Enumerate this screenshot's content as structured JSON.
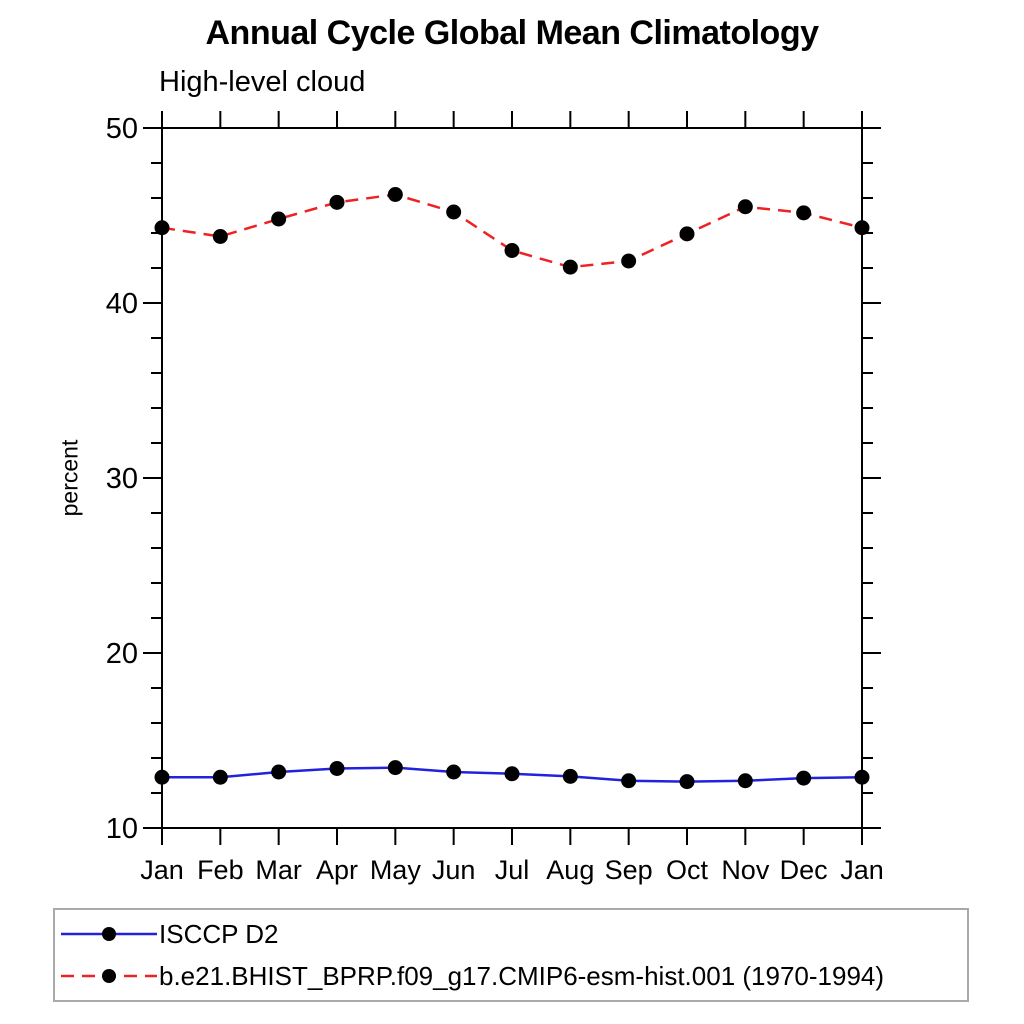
{
  "title": "Annual Cycle Global Mean Climatology",
  "subtitle": "High-level cloud",
  "ylabel": "percent",
  "chart_data": {
    "type": "line",
    "categories": [
      "Jan",
      "Feb",
      "Mar",
      "Apr",
      "May",
      "Jun",
      "Jul",
      "Aug",
      "Sep",
      "Oct",
      "Nov",
      "Dec",
      "Jan"
    ],
    "title": "Annual Cycle Global Mean Climatology",
    "subtitle": "High-level cloud",
    "xlabel": "",
    "ylabel": "percent",
    "ylim": [
      10,
      50
    ],
    "yticks_major": [
      10,
      20,
      30,
      40,
      50
    ],
    "ytick_minor_interval": 2,
    "grid": false,
    "frame": "full-box-outward-ticks",
    "legend_position": "bottom-left-boxed",
    "marker": "filled-circle",
    "marker_color": "#000000",
    "series": [
      {
        "name": "ISCCP D2",
        "color": "#2222dd",
        "line_style": "solid",
        "values": [
          12.9,
          12.9,
          13.2,
          13.4,
          13.45,
          13.2,
          13.1,
          12.95,
          12.7,
          12.65,
          12.7,
          12.85,
          12.9
        ]
      },
      {
        "name": "b.e21.BHIST_BPRP.f09_g17.CMIP6-esm-hist.001 (1970-1994)",
        "color": "#ee2222",
        "line_style": "dashed",
        "values": [
          44.3,
          43.8,
          44.8,
          45.75,
          46.2,
          45.2,
          43.0,
          42.05,
          42.4,
          43.95,
          45.5,
          45.15,
          44.3
        ]
      }
    ]
  }
}
